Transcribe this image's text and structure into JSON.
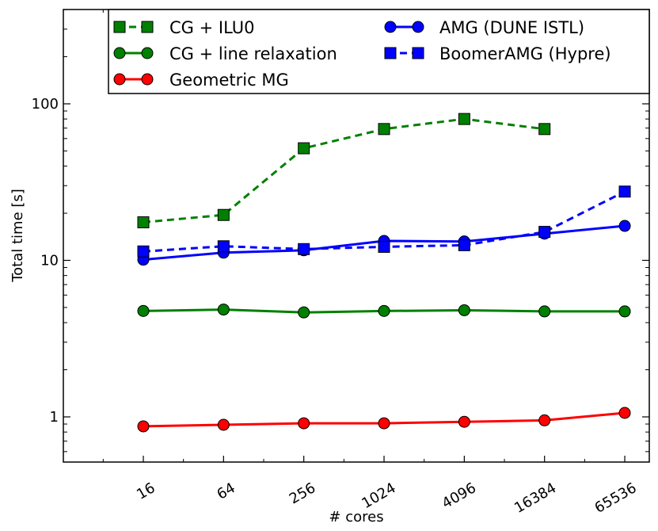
{
  "chart_data": {
    "type": "line",
    "title": "",
    "xlabel": "# cores",
    "ylabel": "Total time [s]",
    "xscale": "log2",
    "yscale": "log10",
    "x": [
      16,
      64,
      256,
      1024,
      4096,
      16384,
      65536
    ],
    "x_tick_labels": [
      "16",
      "64",
      "256",
      "1024",
      "4096",
      "16384",
      "65536"
    ],
    "y_ticks": [
      1,
      10,
      100
    ],
    "y_tick_labels": [
      "1",
      "10",
      "100"
    ],
    "ylim": [
      0.5,
      450
    ],
    "legend_position": "top",
    "series": [
      {
        "name": "CG + ILU0",
        "color": "#008000",
        "line_style": "dashed",
        "marker": "square",
        "x": [
          16,
          64,
          256,
          1024,
          4096,
          16384
        ],
        "values": [
          17.5,
          19.5,
          52,
          69,
          80,
          69
        ]
      },
      {
        "name": "CG + line relaxation",
        "color": "#008000",
        "line_style": "solid",
        "marker": "circle",
        "x": [
          16,
          64,
          256,
          1024,
          4096,
          16384,
          65536
        ],
        "values": [
          4.75,
          4.85,
          4.65,
          4.75,
          4.8,
          4.72,
          4.72
        ]
      },
      {
        "name": "Geometric MG",
        "color": "#ff0000",
        "line_style": "solid",
        "marker": "circle",
        "x": [
          16,
          64,
          256,
          1024,
          4096,
          16384,
          65536
        ],
        "values": [
          0.87,
          0.89,
          0.91,
          0.91,
          0.93,
          0.95,
          1.06
        ]
      },
      {
        "name": "AMG (DUNE ISTL)",
        "color": "#0000ff",
        "line_style": "solid",
        "marker": "circle",
        "x": [
          16,
          64,
          256,
          1024,
          4096,
          16384,
          65536
        ],
        "values": [
          10.1,
          11.2,
          11.6,
          13.3,
          13.2,
          14.8,
          16.6
        ]
      },
      {
        "name": "BoomerAMG (Hypre)",
        "color": "#0000ff",
        "line_style": "dashed",
        "marker": "square",
        "x": [
          16,
          64,
          256,
          1024,
          4096,
          16384,
          65536
        ],
        "values": [
          11.4,
          12.3,
          11.8,
          12.2,
          12.5,
          15.2,
          27.5
        ]
      }
    ]
  }
}
